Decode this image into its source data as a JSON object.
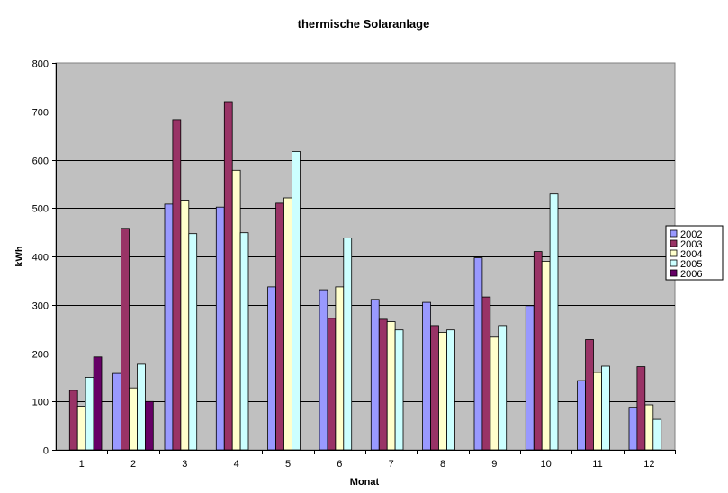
{
  "chart_data": {
    "type": "bar",
    "title": "thermische Solaranlage",
    "xlabel": "Monat",
    "ylabel": "kWh",
    "ylim": [
      0,
      800
    ],
    "yticks": [
      0,
      100,
      200,
      300,
      400,
      500,
      600,
      700,
      800
    ],
    "grid": true,
    "legend_position": "right",
    "plot_background": "#c0c0c0",
    "categories": [
      "1",
      "2",
      "3",
      "4",
      "5",
      "6",
      "7",
      "8",
      "9",
      "10",
      "11",
      "12"
    ],
    "series": [
      {
        "name": "2002",
        "color": "#9999ff",
        "values": [
          null,
          158,
          508,
          502,
          337,
          331,
          311,
          305,
          397,
          298,
          143,
          88
        ]
      },
      {
        "name": "2003",
        "color": "#993366",
        "values": [
          123,
          458,
          683,
          720,
          510,
          272,
          270,
          257,
          316,
          410,
          228,
          172
        ]
      },
      {
        "name": "2004",
        "color": "#ffffcc",
        "values": [
          90,
          128,
          516,
          578,
          521,
          337,
          265,
          243,
          233,
          390,
          160,
          93
        ]
      },
      {
        "name": "2005",
        "color": "#ccffff",
        "values": [
          150,
          177,
          447,
          449,
          617,
          438,
          248,
          248,
          257,
          529,
          173,
          63
        ]
      },
      {
        "name": "2006",
        "color": "#660066",
        "values": [
          192,
          100,
          null,
          null,
          null,
          null,
          null,
          null,
          null,
          null,
          null,
          null
        ]
      }
    ]
  }
}
